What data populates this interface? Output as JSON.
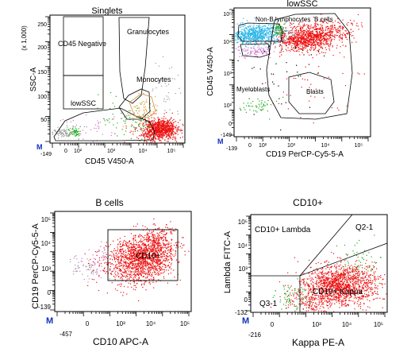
{
  "chart_data": [
    {
      "type": "scatter",
      "title": "Singlets",
      "xlabel": "CD45 V450-A",
      "ylabel": "SSC-A",
      "y_unit": "(x 1,000)",
      "x_scale": "log",
      "y_scale": "linear",
      "x_ticks": [
        "-149",
        "0",
        "10²",
        "10³",
        "10⁴",
        "10⁵"
      ],
      "y_ticks": [
        "50",
        "100",
        "150",
        "200",
        "250"
      ],
      "ylim": [
        0,
        262
      ],
      "gates": [
        "CD45 Negative",
        "Granulocytes",
        "Monocytes",
        "lowSSC"
      ],
      "marker": "M",
      "colors": {
        "gray": "#9a9a9a",
        "green": "#1faa1f",
        "red": "#ee1111",
        "orange": "#f0a030",
        "magenta": "#d070d0"
      }
    },
    {
      "type": "scatter",
      "title": "lowSSC",
      "xlabel": "CD19 PerCP-Cy5-5-A",
      "ylabel": "CD45 V450-A",
      "x_scale": "log",
      "y_scale": "log",
      "x_ticks": [
        "-139",
        "0",
        "10²",
        "10³",
        "10⁴",
        "10⁵"
      ],
      "y_ticks": [
        "-149",
        "0",
        "10²",
        "10³",
        "10⁴",
        "10⁵"
      ],
      "gates": [
        "Non-B lymphocytes",
        "B cells",
        "Myeloblasts",
        "Blasts"
      ],
      "marker": "M",
      "colors": {
        "cyan": "#29b6e8",
        "green": "#1faa1f",
        "red": "#ee1111",
        "magenta": "#d070d0"
      }
    },
    {
      "type": "scatter",
      "title": "B cells",
      "xlabel": "CD10 APC-A",
      "ylabel": "CD19 PerCP-Cy5-5-A",
      "x_scale": "log",
      "y_scale": "log",
      "x_ticks": [
        "-457",
        "0",
        "10³",
        "10⁴",
        "10⁵"
      ],
      "y_ticks": [
        "-139",
        "0",
        "10³",
        "10⁴",
        "10⁵"
      ],
      "gates": [
        "CD10+"
      ],
      "marker": "M",
      "colors": {
        "red": "#ee1111",
        "magenta": "#d070d0",
        "gray": "#9a9a9a"
      }
    },
    {
      "type": "scatter",
      "title": "CD10+",
      "xlabel": "Kappa PE-A",
      "ylabel": "Lambda FITC-A",
      "x_scale": "log",
      "y_scale": "log",
      "x_ticks": [
        "-216",
        "0",
        "10³",
        "10⁴",
        "10⁵"
      ],
      "y_ticks": [
        "-132",
        "0",
        "10³",
        "10⁴",
        "10⁵"
      ],
      "gates": [
        "CD10+ Lambda",
        "Q2-1",
        "CD10+ Kappa",
        "Q3-1"
      ],
      "marker": "M",
      "colors": {
        "red": "#ee1111",
        "green": "#1faa1f"
      }
    }
  ]
}
